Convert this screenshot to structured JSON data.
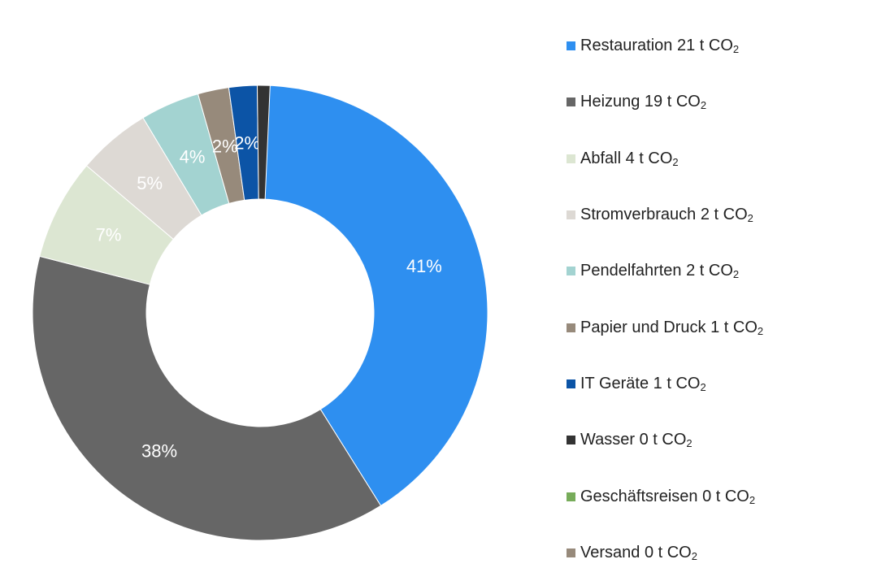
{
  "chart_data": {
    "type": "pie",
    "donut": true,
    "unit": "t CO",
    "unit_subscript": "2",
    "legend_position": "right",
    "slices": [
      {
        "name": "Restauration",
        "value": 21,
        "percent_label": "41%",
        "color": "#2E8FF0"
      },
      {
        "name": "Heizung",
        "value": 19,
        "percent_label": "38%",
        "color": "#666666"
      },
      {
        "name": "Abfall ",
        "value": 4,
        "percent_label": "7%",
        "color": "#DCE6D2"
      },
      {
        "name": "Stromverbrauch",
        "value": 2,
        "percent_label": "5%",
        "color": "#DDD9D4"
      },
      {
        "name": "Pendelfahrten",
        "value": 2,
        "percent_label": "4%",
        "color": "#A3D3D1"
      },
      {
        "name": "Papier und Druck",
        "value": 1,
        "percent_label": "2%",
        "color": "#978A7B"
      },
      {
        "name": "IT Geräte",
        "value": 1,
        "percent_label": "2%",
        "color": "#0C54A6"
      },
      {
        "name": "Wasser",
        "value": 0,
        "percent_label": "",
        "color": "#333333"
      },
      {
        "name": "Geschäftsreisen",
        "value": 0,
        "percent_label": "",
        "color": "#77AC5A"
      },
      {
        "name": "Versand",
        "value": 0,
        "percent_label": "",
        "color": "#978A7B"
      }
    ],
    "slice_fractions": [
      0.411,
      0.379,
      0.072,
      0.052,
      0.042,
      0.022,
      0.02,
      0.009,
      0,
      0
    ]
  }
}
